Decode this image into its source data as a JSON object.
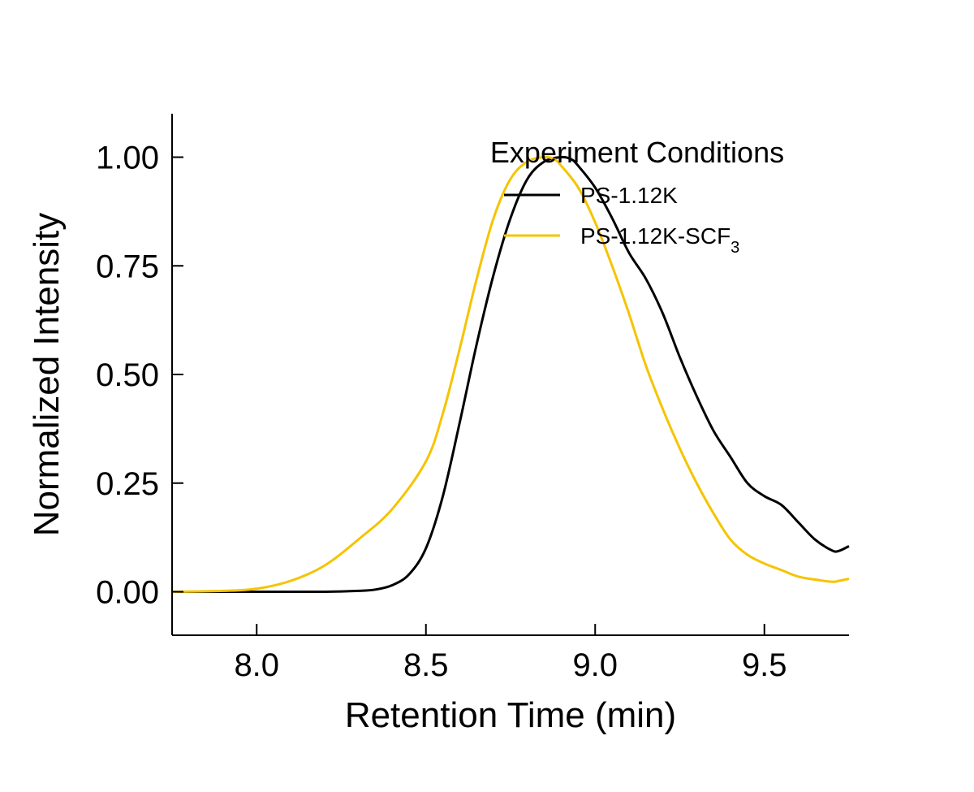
{
  "chart_data": {
    "type": "line",
    "title": "",
    "xlabel": "Retention Time (min)",
    "ylabel": "Normalized Intensity",
    "xlim": [
      7.75,
      9.75
    ],
    "ylim": [
      -0.1,
      1.1
    ],
    "xticks": [
      8.0,
      8.5,
      9.0,
      9.5
    ],
    "xtick_labels": [
      "8.0",
      "8.5",
      "9.0",
      "9.5"
    ],
    "yticks": [
      0.0,
      0.25,
      0.5,
      0.75,
      1.0
    ],
    "ytick_labels": [
      "0.00",
      "0.25",
      "0.50",
      "0.75",
      "1.00"
    ],
    "grid": false,
    "legend": {
      "title": "Experiment Conditions",
      "placement": "top-right",
      "entries": [
        {
          "label": "PS-1.12K",
          "sub": "",
          "color": "#000000"
        },
        {
          "label": "PS-1.12K-SCF",
          "sub": "3",
          "color": "#f5c400"
        }
      ]
    },
    "series": [
      {
        "name": "PS-1.12K",
        "color": "#000000",
        "x": [
          7.75,
          8.0,
          8.2,
          8.3,
          8.35,
          8.4,
          8.45,
          8.5,
          8.55,
          8.6,
          8.65,
          8.7,
          8.75,
          8.8,
          8.85,
          8.9,
          8.93,
          8.95,
          9.0,
          9.05,
          9.1,
          9.15,
          9.2,
          9.25,
          9.3,
          9.35,
          9.4,
          9.45,
          9.5,
          9.55,
          9.6,
          9.65,
          9.7,
          9.72,
          9.75
        ],
        "y": [
          0.0,
          0.0,
          0.0,
          0.002,
          0.005,
          0.015,
          0.04,
          0.1,
          0.22,
          0.39,
          0.57,
          0.73,
          0.86,
          0.95,
          0.99,
          1.0,
          0.995,
          0.98,
          0.93,
          0.86,
          0.78,
          0.72,
          0.64,
          0.54,
          0.45,
          0.37,
          0.31,
          0.25,
          0.22,
          0.2,
          0.16,
          0.12,
          0.095,
          0.094,
          0.105
        ]
      },
      {
        "name": "PS-1.12K-SCF3",
        "color": "#f5c400",
        "x": [
          7.75,
          7.9,
          8.0,
          8.1,
          8.2,
          8.3,
          8.4,
          8.5,
          8.55,
          8.6,
          8.65,
          8.7,
          8.75,
          8.8,
          8.85,
          8.88,
          8.9,
          8.95,
          9.0,
          9.05,
          9.1,
          9.15,
          9.2,
          9.25,
          9.3,
          9.35,
          9.4,
          9.45,
          9.5,
          9.55,
          9.6,
          9.65,
          9.7,
          9.72,
          9.75
        ],
        "y": [
          0.0,
          0.002,
          0.007,
          0.025,
          0.06,
          0.12,
          0.19,
          0.3,
          0.41,
          0.56,
          0.72,
          0.86,
          0.95,
          0.99,
          1.0,
          0.995,
          0.98,
          0.93,
          0.85,
          0.75,
          0.64,
          0.52,
          0.42,
          0.33,
          0.25,
          0.18,
          0.12,
          0.085,
          0.065,
          0.05,
          0.035,
          0.028,
          0.023,
          0.025,
          0.03
        ]
      }
    ]
  }
}
